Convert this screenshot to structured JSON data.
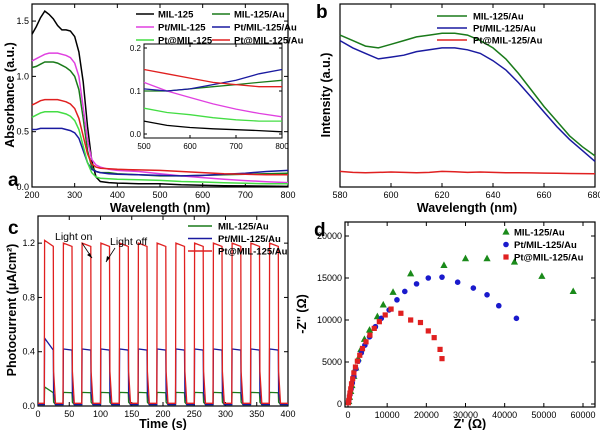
{
  "chart_data": [
    {
      "panel": "a",
      "type": "line",
      "xlabel": "Wavelength (nm)",
      "ylabel": "Absorbance (a.u.)",
      "xlim": [
        200,
        800
      ],
      "ylim": [
        0,
        1.6
      ],
      "xticks": [
        200,
        300,
        400,
        500,
        600,
        700,
        800
      ],
      "yticks": [
        0.0,
        0.5,
        1.0,
        1.5
      ],
      "legend": "top-right",
      "series": [
        {
          "name": "MIL-125",
          "color": "#000000",
          "x": [
            200,
            210,
            220,
            230,
            240,
            250,
            260,
            270,
            280,
            290,
            300,
            310,
            320,
            330,
            340,
            350,
            360,
            380,
            400,
            450,
            500,
            550,
            600,
            650,
            700,
            750,
            800
          ],
          "y": [
            1.38,
            1.45,
            1.53,
            1.59,
            1.56,
            1.52,
            1.46,
            1.42,
            1.42,
            1.41,
            1.36,
            1.22,
            0.95,
            0.55,
            0.24,
            0.09,
            0.05,
            0.04,
            0.035,
            0.03,
            0.03,
            0.02,
            0.015,
            0.012,
            0.01,
            0.008,
            0.005
          ]
        },
        {
          "name": "MIL-125/Au",
          "color": "#1a7a1a",
          "x": [
            200,
            210,
            220,
            230,
            240,
            250,
            260,
            270,
            280,
            290,
            300,
            310,
            320,
            330,
            340,
            350,
            360,
            380,
            400,
            450,
            500,
            550,
            600,
            650,
            700,
            750,
            800
          ],
          "y": [
            1.08,
            1.09,
            1.11,
            1.13,
            1.13,
            1.13,
            1.12,
            1.1,
            1.08,
            1.05,
            1.0,
            0.88,
            0.62,
            0.33,
            0.18,
            0.14,
            0.13,
            0.13,
            0.12,
            0.11,
            0.1,
            0.1,
            0.105,
            0.11,
            0.115,
            0.12,
            0.125
          ]
        },
        {
          "name": "Pt/MIL-125",
          "color": "#e040e0",
          "x": [
            200,
            210,
            220,
            230,
            240,
            250,
            260,
            270,
            280,
            290,
            300,
            310,
            320,
            330,
            340,
            350,
            360,
            380,
            400,
            450,
            500,
            550,
            600,
            650,
            700,
            750,
            800
          ],
          "y": [
            1.14,
            1.16,
            1.18,
            1.2,
            1.21,
            1.21,
            1.21,
            1.2,
            1.19,
            1.17,
            1.12,
            1.0,
            0.72,
            0.42,
            0.25,
            0.2,
            0.18,
            0.16,
            0.15,
            0.14,
            0.12,
            0.1,
            0.085,
            0.07,
            0.058,
            0.048,
            0.04
          ]
        },
        {
          "name": "Pt/MIL-125/Au",
          "color": "#1a1aa0",
          "x": [
            200,
            210,
            220,
            230,
            240,
            250,
            260,
            270,
            280,
            290,
            300,
            310,
            320,
            330,
            340,
            350,
            360,
            380,
            400,
            450,
            500,
            550,
            600,
            650,
            700,
            750,
            800
          ],
          "y": [
            0.52,
            0.52,
            0.53,
            0.53,
            0.53,
            0.53,
            0.53,
            0.53,
            0.52,
            0.51,
            0.49,
            0.44,
            0.33,
            0.22,
            0.16,
            0.14,
            0.13,
            0.12,
            0.115,
            0.11,
            0.105,
            0.1,
            0.105,
            0.115,
            0.125,
            0.14,
            0.15
          ]
        },
        {
          "name": "Pt@MIL-125",
          "color": "#44dd44",
          "x": [
            200,
            210,
            220,
            230,
            240,
            250,
            260,
            270,
            280,
            290,
            300,
            310,
            320,
            330,
            340,
            350,
            360,
            380,
            400,
            450,
            500,
            550,
            600,
            650,
            700,
            750,
            800
          ],
          "y": [
            0.63,
            0.65,
            0.67,
            0.68,
            0.68,
            0.68,
            0.68,
            0.67,
            0.66,
            0.64,
            0.6,
            0.52,
            0.37,
            0.22,
            0.13,
            0.09,
            0.08,
            0.075,
            0.07,
            0.065,
            0.06,
            0.05,
            0.045,
            0.038,
            0.033,
            0.03,
            0.03
          ]
        },
        {
          "name": "Pt@MIL-125/Au",
          "color": "#e02020",
          "x": [
            200,
            210,
            220,
            230,
            240,
            250,
            260,
            270,
            280,
            290,
            300,
            310,
            320,
            330,
            340,
            350,
            360,
            380,
            400,
            450,
            500,
            550,
            600,
            650,
            700,
            750,
            800
          ],
          "y": [
            0.74,
            0.76,
            0.78,
            0.79,
            0.79,
            0.79,
            0.79,
            0.78,
            0.77,
            0.75,
            0.71,
            0.62,
            0.46,
            0.3,
            0.21,
            0.18,
            0.17,
            0.165,
            0.16,
            0.155,
            0.15,
            0.14,
            0.13,
            0.12,
            0.115,
            0.11,
            0.11
          ]
        }
      ],
      "inset": {
        "xlim": [
          500,
          800
        ],
        "ylim": [
          0.0,
          0.2
        ],
        "xticks": [
          500,
          600,
          700,
          800
        ],
        "yticks": [
          0.0,
          0.1,
          0.2
        ]
      }
    },
    {
      "panel": "b",
      "type": "line",
      "xlabel": "Wavelength (nm)",
      "ylabel": "Intensity (a.u.)",
      "xlim": [
        580,
        680
      ],
      "ylim": [
        0,
        1
      ],
      "xticks": [
        580,
        600,
        620,
        640,
        660,
        680
      ],
      "legend": "top-right",
      "series": [
        {
          "name": "MIL-125/Au",
          "color": "#1a7a1a",
          "x": [
            580,
            585,
            590,
            595,
            600,
            605,
            610,
            615,
            620,
            625,
            630,
            635,
            640,
            645,
            650,
            655,
            660,
            665,
            670,
            675,
            680
          ],
          "y": [
            0.83,
            0.8,
            0.77,
            0.76,
            0.78,
            0.8,
            0.82,
            0.83,
            0.84,
            0.84,
            0.83,
            0.8,
            0.76,
            0.7,
            0.62,
            0.53,
            0.44,
            0.36,
            0.28,
            0.22,
            0.17
          ]
        },
        {
          "name": "Pt/MIL-125/Au",
          "color": "#1a1aa0",
          "x": [
            580,
            585,
            590,
            595,
            600,
            605,
            610,
            615,
            620,
            625,
            630,
            635,
            640,
            645,
            650,
            655,
            660,
            665,
            670,
            675,
            680
          ],
          "y": [
            0.8,
            0.76,
            0.73,
            0.7,
            0.71,
            0.72,
            0.74,
            0.75,
            0.76,
            0.76,
            0.75,
            0.73,
            0.69,
            0.64,
            0.57,
            0.49,
            0.41,
            0.33,
            0.26,
            0.2,
            0.14
          ]
        },
        {
          "name": "Pt@MIL-125/Au",
          "color": "#e02020",
          "x": [
            580,
            585,
            590,
            595,
            600,
            605,
            610,
            615,
            620,
            625,
            630,
            635,
            640,
            645,
            650,
            655,
            660,
            665,
            670,
            675,
            680
          ],
          "y": [
            0.085,
            0.08,
            0.078,
            0.08,
            0.082,
            0.08,
            0.078,
            0.08,
            0.085,
            0.083,
            0.08,
            0.082,
            0.08,
            0.078,
            0.078,
            0.077,
            0.076,
            0.075,
            0.074,
            0.073,
            0.072
          ]
        }
      ]
    },
    {
      "panel": "c",
      "type": "line",
      "xlabel": "Time (s)",
      "ylabel": "Photocurrent (μA/cm²)",
      "xlim": [
        0,
        400
      ],
      "ylim": [
        0,
        1.4
      ],
      "xticks": [
        0,
        50,
        100,
        150,
        200,
        250,
        300,
        350,
        400
      ],
      "yticks": [
        0.0,
        0.4,
        0.8,
        1.2
      ],
      "legend": "top-right",
      "annotations": [
        "Light on",
        "Light off"
      ],
      "pulse": {
        "first_on": 10,
        "period": 30,
        "on_duration": 15,
        "count": 13
      },
      "series": [
        {
          "name": "MIL-125/Au",
          "color": "#1a7a1a",
          "dark": 0.01,
          "on": 0.1,
          "first_on": 0.14
        },
        {
          "name": "Pt/MIL-125/Au",
          "color": "#1a1aa0",
          "dark": 0.01,
          "on": 0.42,
          "first_on": 0.5
        },
        {
          "name": "Pt@MIL-125/Au",
          "color": "#e02020",
          "dark": 0.02,
          "on": 1.2,
          "first_on": 1.22
        }
      ]
    },
    {
      "panel": "d",
      "type": "scatter",
      "xlabel": "Z' (Ω)",
      "ylabel": "-Z'' (Ω)",
      "xlim": [
        0,
        60000
      ],
      "ylim": [
        0,
        20000
      ],
      "xticks": [
        0,
        10000,
        20000,
        30000,
        40000,
        50000,
        60000
      ],
      "yticks": [
        0,
        5000,
        10000,
        15000,
        20000
      ],
      "legend": "top-right",
      "series": [
        {
          "name": "MIL-125/Au",
          "color": "#1a8a1a",
          "marker": "triangle",
          "x": [
            200,
            400,
            700,
            1000,
            1500,
            2000,
            2600,
            3300,
            4200,
            5500,
            7500,
            9000,
            11500,
            16000,
            24500,
            30000,
            35500,
            42500,
            49500,
            57500
          ],
          "y": [
            300,
            800,
            1500,
            2200,
            3300,
            4300,
            5400,
            6500,
            7700,
            8800,
            10400,
            11800,
            13300,
            15500,
            16500,
            17300,
            17300,
            16900,
            15200,
            13400
          ]
        },
        {
          "name": "Pt/MIL-125/Au",
          "color": "#1a1acc",
          "marker": "circle",
          "x": [
            150,
            300,
            500,
            800,
            1100,
            1500,
            2000,
            2600,
            3400,
            4300,
            5500,
            7000,
            8500,
            10500,
            12500,
            14500,
            17500,
            20500,
            24000,
            28000,
            32000,
            35500,
            38500,
            43000
          ],
          "y": [
            200,
            600,
            1100,
            1800,
            2500,
            3300,
            4200,
            5100,
            6100,
            7000,
            8000,
            9200,
            10200,
            11200,
            12400,
            13400,
            14300,
            15000,
            15100,
            14500,
            13800,
            13000,
            11700,
            10200
          ]
        },
        {
          "name": "Pt@MIL-125/Au",
          "color": "#e02020",
          "marker": "square",
          "x": [
            100,
            200,
            350,
            500,
            700,
            900,
            1200,
            1500,
            1900,
            2400,
            3000,
            3700,
            4600,
            5600,
            6700,
            8000,
            9500,
            11000,
            13500,
            16000,
            18500,
            20500,
            22000,
            23500,
            24000
          ],
          "y": [
            150,
            400,
            800,
            1300,
            1800,
            2400,
            3000,
            3700,
            4400,
            5100,
            5800,
            6600,
            7400,
            8200,
            9000,
            9800,
            10600,
            11300,
            10800,
            10000,
            9700,
            8700,
            7900,
            6500,
            5400
          ]
        }
      ]
    }
  ]
}
